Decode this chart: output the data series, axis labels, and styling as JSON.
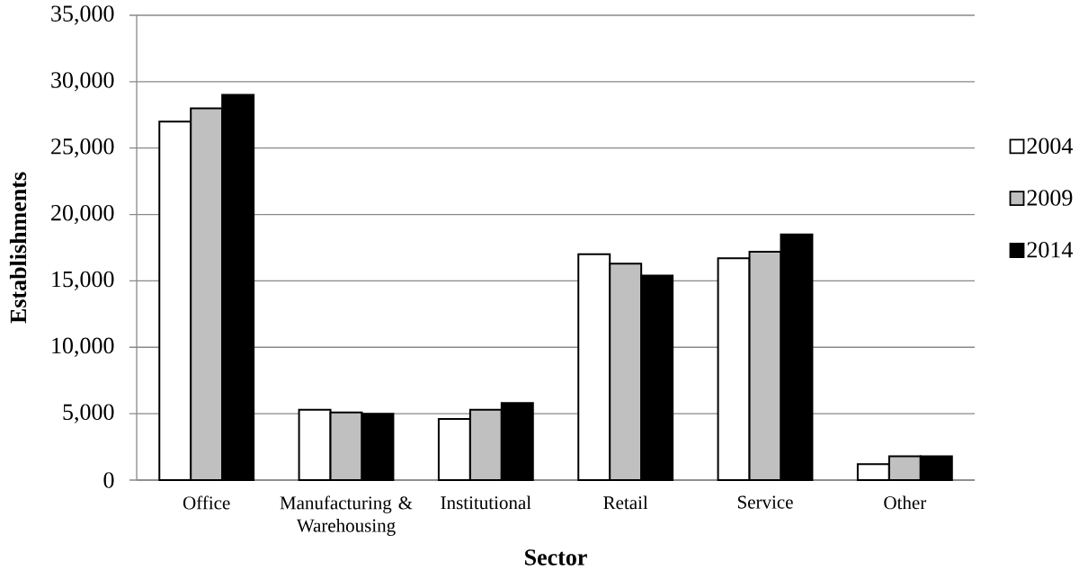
{
  "chart_data": {
    "type": "bar",
    "xlabel": "Sector",
    "ylabel": "Establishments",
    "categories": [
      "Office",
      "Manufacturing & Warehousing",
      "Institutional",
      "Retail",
      "Service",
      "Other"
    ],
    "series": [
      {
        "name": "2004",
        "color": "#ffffff",
        "values": [
          27000,
          5300,
          4600,
          17000,
          16700,
          1200
        ]
      },
      {
        "name": "2009",
        "color": "#c0c0c0",
        "values": [
          28000,
          5100,
          5300,
          16300,
          17200,
          1800
        ]
      },
      {
        "name": "2014",
        "color": "#000000",
        "values": [
          29000,
          5000,
          5800,
          15400,
          18500,
          1800
        ]
      }
    ],
    "ylim": [
      0,
      35000
    ],
    "yticks": [
      0,
      {
        "value": 5000,
        "label": "5,000"
      },
      {
        "value": 10000,
        "label": "10,000"
      },
      {
        "value": 15000,
        "label": "15,000"
      },
      {
        "value": 20000,
        "label": "20,000"
      },
      {
        "value": 25000,
        "label": "25,000"
      },
      {
        "value": 30000,
        "label": "30,000"
      },
      {
        "value": 35000,
        "label": "35,000"
      }
    ],
    "grid": "y",
    "legend": "right"
  }
}
